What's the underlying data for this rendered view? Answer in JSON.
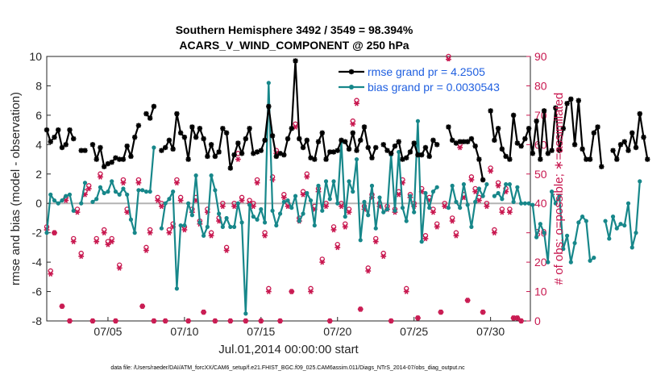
{
  "chart_data": {
    "type": "line",
    "title_line1": "Southern Hemisphere 3492 / 3549 = 98.394%",
    "title_line2": "ACARS_V_WIND_COMPONENT @ 250 hPa",
    "xlabel": "Jul.01,2014 00:00:00 start",
    "ylabel": "rmse and bias (model - observation)",
    "ylabel_right": "# of obs: o=possible; ∗=assimilated",
    "footnote": "data file: /Users/raeder/DAI/ATM_forcXX/CAM6_setup/f.e21.FHIST_BGC.f09_025.CAM6assim.011/Diags_NTrS_2014-07/obs_diag_output.nc",
    "xlim": [
      1,
      32.6
    ],
    "ylim": [
      -8,
      10
    ],
    "ylim_right": [
      0,
      90
    ],
    "yticks": [
      "10",
      "8",
      "6",
      "4",
      "2",
      "0",
      "-2",
      "-4",
      "-6",
      "-8"
    ],
    "yticks_right": [
      "90",
      "80",
      "70",
      "60",
      "50",
      "40",
      "30",
      "20",
      "10",
      "0"
    ],
    "xticks": [
      {
        "x": 5,
        "label": "07/05"
      },
      {
        "x": 10,
        "label": "07/10"
      },
      {
        "x": 15,
        "label": "07/15"
      },
      {
        "x": 20,
        "label": "07/20"
      },
      {
        "x": 25,
        "label": "07/25"
      },
      {
        "x": 30,
        "label": "07/30"
      }
    ],
    "x_step_days": 0.25,
    "x_start": 1.0,
    "series": [
      {
        "name": "rmse grand pr = 4.2505",
        "color": "#000000",
        "marker": "star",
        "values": [
          5.0,
          4.2,
          4.5,
          5.0,
          3.8,
          4.0,
          5.0,
          4.4,
          null,
          3.6,
          3.6,
          null,
          4.0,
          3.0,
          3.8,
          2.5,
          2.7,
          2.8,
          3.1,
          3.0,
          3.0,
          3.9,
          3.2,
          4.5,
          5.3,
          null,
          6.1,
          5.8,
          6.6,
          null,
          3.6,
          3.8,
          4.3,
          3.7,
          6.1,
          4.8,
          4.5,
          3.0,
          5.2,
          4.5,
          5.1,
          4.4,
          3.2,
          4.0,
          3.2,
          3.5,
          5.1,
          4.8,
          2.4,
          3.3,
          4.1,
          3.4,
          4.4,
          5.1,
          3.4,
          3.5,
          3.6,
          4.3,
          6.6,
          4.6,
          3.2,
          3.4,
          3.3,
          4.4,
          5.1,
          9.7,
          4.4,
          3.8,
          4.3,
          3.1,
          3.0,
          4.2,
          4.8,
          3.0,
          3.5,
          3.5,
          3.6,
          4.3,
          4.2,
          3.7,
          4.8,
          3.6,
          4.3,
          5.2,
          3.8,
          3.1,
          3.8,
          null,
          4.0,
          3.6,
          3.4,
          3.9,
          4.2,
          3.0,
          3.1,
          3.5,
          4.1,
          3.3,
          3.3,
          3.8,
          3.2,
          4.3,
          4.0,
          null,
          null,
          5.2,
          4.3,
          4.1,
          4.2,
          4.2,
          4.2,
          4.4,
          3.9,
          3.0,
          1.6,
          null,
          6.3,
          4.3,
          5.1,
          3.7,
          3.2,
          3.0,
          6.0,
          4.1,
          3.9,
          4.4,
          5.1,
          3.4,
          5.6,
          3.0,
          6.3,
          3.4,
          3.6,
          6.5,
          3.6,
          5.1,
          6.8,
          7.1,
          4.0,
          7.0,
          3.7,
          3.0,
          3.0,
          4.8,
          5.2,
          2.5,
          null,
          null,
          3.6,
          3.0,
          4.0,
          4.2,
          3.6,
          4.8,
          3.8,
          6.1,
          4.5,
          3.0
        ]
      },
      {
        "name": "bias grand pr = 0.0030543",
        "color": "#17878a",
        "marker": "dot",
        "values": [
          -2.0,
          0.6,
          0.2,
          0.0,
          0.2,
          0.5,
          0.6,
          -0.5,
          null,
          0.0,
          1.4,
          null,
          0.1,
          0.3,
          1.1,
          0.7,
          0.8,
          1.5,
          0.8,
          0.6,
          1.0,
          0.6,
          -1.1,
          -2.0,
          0.9,
          0.9,
          0.8,
          0.8,
          3.8,
          null,
          -1.7,
          0.0,
          0.3,
          0.8,
          -5.8,
          -1.5,
          -1.5,
          0.0,
          -0.8,
          1.9,
          -1.3,
          -2.2,
          -1.6,
          1.9,
          0.9,
          -0.7,
          -1.6,
          -1.0,
          -1.6,
          -1.6,
          0.0,
          -1.3,
          -7.5,
          -0.1,
          -0.9,
          -1.1,
          -0.4,
          -1.3,
          8.2,
          -0.5,
          -1.5,
          -0.7,
          0.1,
          0.2,
          -0.3,
          0.5,
          -1.2,
          -0.7,
          0.7,
          0.2,
          -1.5,
          1.2,
          -0.5,
          1.5,
          0.3,
          1.5,
          0.0,
          4.2,
          -0.9,
          1.5,
          0.8,
          3.0,
          -2.5,
          0.1,
          -0.8,
          1.2,
          -1.7,
          0.4,
          -0.6,
          -0.4,
          3.3,
          -0.5,
          3.5,
          -0.3,
          -1.2,
          0.5,
          -0.6,
          5.6,
          -2.6,
          0.7,
          -0.3,
          0.8,
          1.1,
          null,
          null,
          -0.3,
          1.2,
          0.1,
          -0.3,
          1.3,
          -0.1,
          -1.6,
          0.1,
          1.0,
          0.5,
          1.3,
          null,
          0.5,
          0.7,
          0.3,
          1.3,
          1.3,
          0.1,
          1.1,
          0.0,
          0.0,
          0.0,
          -0.1,
          -2.3,
          -1.4,
          -2.0,
          -4.0,
          0.8,
          0.0,
          0.5,
          -3.1,
          -2.2,
          -4.0,
          -2.7,
          -1.3,
          -0.9,
          -1.2,
          -3.9,
          -3.7,
          null,
          null,
          -1.2,
          -2.4,
          -0.9,
          -1.7,
          -1.4,
          -1.5,
          0.0,
          -3.0,
          -2.0,
          1.5
        ]
      }
    ],
    "obs_possible": {
      "name": "o=possible",
      "color": "#c8174f",
      "marker": "circle",
      "points": [
        [
          1.0,
          32
        ],
        [
          1.25,
          17
        ],
        [
          1.5,
          30
        ],
        [
          2.0,
          5
        ],
        [
          2.25,
          42
        ],
        [
          2.5,
          0
        ],
        [
          2.75,
          28
        ],
        [
          3.0,
          38
        ],
        [
          3.25,
          23
        ],
        [
          3.5,
          44
        ],
        [
          3.75,
          46
        ],
        [
          4.0,
          0
        ],
        [
          4.25,
          28
        ],
        [
          4.5,
          50
        ],
        [
          4.75,
          31
        ],
        [
          5.0,
          27
        ],
        [
          5.25,
          28
        ],
        [
          5.5,
          0
        ],
        [
          5.75,
          19
        ],
        [
          6.0,
          48
        ],
        [
          6.25,
          38
        ],
        [
          7.0,
          48
        ],
        [
          7.25,
          5
        ],
        [
          7.5,
          25
        ],
        [
          7.75,
          31
        ],
        [
          8.0,
          0
        ],
        [
          8.25,
          42
        ],
        [
          8.5,
          40
        ],
        [
          8.75,
          0
        ],
        [
          9.0,
          31
        ],
        [
          9.25,
          33
        ],
        [
          9.5,
          48
        ],
        [
          9.75,
          42
        ],
        [
          10.0,
          32
        ],
        [
          10.25,
          0
        ],
        [
          10.5,
          38
        ],
        [
          10.75,
          42
        ],
        [
          11.0,
          34
        ],
        [
          11.25,
          3
        ],
        [
          11.5,
          38
        ],
        [
          11.75,
          30
        ],
        [
          12.0,
          0
        ],
        [
          12.25,
          35
        ],
        [
          12.5,
          40
        ],
        [
          12.75,
          25
        ],
        [
          13.0,
          0
        ],
        [
          13.25,
          40
        ],
        [
          13.5,
          57
        ],
        [
          13.75,
          42
        ],
        [
          14.0,
          0
        ],
        [
          14.25,
          41
        ],
        [
          14.5,
          40
        ],
        [
          14.75,
          48
        ],
        [
          15.0,
          0
        ],
        [
          15.25,
          30
        ],
        [
          15.5,
          11
        ],
        [
          15.75,
          49
        ],
        [
          16.0,
          58
        ],
        [
          16.25,
          0
        ],
        [
          16.5,
          43
        ],
        [
          16.75,
          40
        ],
        [
          17.0,
          10
        ],
        [
          17.25,
          67
        ],
        [
          17.5,
          35
        ],
        [
          17.75,
          44
        ],
        [
          18.0,
          50
        ],
        [
          18.25,
          11
        ],
        [
          18.5,
          39
        ],
        [
          18.75,
          45
        ],
        [
          19.0,
          21
        ],
        [
          19.25,
          40
        ],
        [
          19.5,
          0
        ],
        [
          19.75,
          32
        ],
        [
          20.0,
          26
        ],
        [
          20.25,
          40
        ],
        [
          20.5,
          33
        ],
        [
          20.75,
          38
        ],
        [
          21.0,
          68
        ],
        [
          21.25,
          75
        ],
        [
          21.5,
          4
        ],
        [
          21.75,
          39
        ],
        [
          22.0,
          18
        ],
        [
          22.25,
          43
        ],
        [
          22.5,
          28
        ],
        [
          22.75,
          40
        ],
        [
          23.0,
          23
        ],
        [
          23.25,
          39
        ],
        [
          23.5,
          0
        ],
        [
          23.75,
          38
        ],
        [
          24.0,
          44
        ],
        [
          24.25,
          48
        ],
        [
          24.5,
          11
        ],
        [
          24.75,
          43
        ],
        [
          25.0,
          40
        ],
        [
          25.25,
          1
        ],
        [
          25.5,
          45
        ],
        [
          25.75,
          29
        ],
        [
          26.0,
          42
        ],
        [
          26.25,
          38
        ],
        [
          26.5,
          33
        ],
        [
          26.75,
          3
        ],
        [
          27.0,
          40
        ],
        [
          27.25,
          90
        ],
        [
          27.5,
          35
        ],
        [
          27.75,
          30
        ],
        [
          28.0,
          60
        ],
        [
          28.25,
          43
        ],
        [
          28.5,
          7
        ],
        [
          28.75,
          49
        ],
        [
          29.0,
          45
        ],
        [
          29.25,
          42
        ],
        [
          29.5,
          3
        ],
        [
          29.75,
          40
        ],
        [
          30.0,
          52
        ],
        [
          30.25,
          31
        ],
        [
          30.5,
          47
        ],
        [
          30.75,
          38
        ],
        [
          31.0,
          45
        ],
        [
          31.25,
          38
        ],
        [
          31.5,
          1
        ],
        [
          31.75,
          1
        ],
        [
          32.0,
          0
        ]
      ]
    },
    "obs_assimilated": {
      "name": "∗=assimilated",
      "color": "#c8174f",
      "marker": "asterisk",
      "points": [
        [
          1.0,
          31
        ],
        [
          1.25,
          16
        ],
        [
          1.5,
          30
        ],
        [
          2.0,
          5
        ],
        [
          2.25,
          41
        ],
        [
          2.5,
          0
        ],
        [
          2.75,
          27
        ],
        [
          3.0,
          37
        ],
        [
          3.25,
          22
        ],
        [
          3.5,
          43
        ],
        [
          3.75,
          45
        ],
        [
          4.0,
          0
        ],
        [
          4.25,
          27
        ],
        [
          4.5,
          49
        ],
        [
          4.75,
          30
        ],
        [
          5.0,
          26
        ],
        [
          5.25,
          27
        ],
        [
          5.5,
          0
        ],
        [
          5.75,
          18
        ],
        [
          6.0,
          47
        ],
        [
          6.25,
          37
        ],
        [
          7.0,
          47
        ],
        [
          7.25,
          5
        ],
        [
          7.5,
          24
        ],
        [
          7.75,
          30
        ],
        [
          8.0,
          0
        ],
        [
          8.25,
          41
        ],
        [
          8.5,
          39
        ],
        [
          8.75,
          0
        ],
        [
          9.0,
          30
        ],
        [
          9.25,
          32
        ],
        [
          9.5,
          47
        ],
        [
          9.75,
          41
        ],
        [
          10.0,
          31
        ],
        [
          10.25,
          0
        ],
        [
          10.5,
          37
        ],
        [
          10.75,
          41
        ],
        [
          11.0,
          33
        ],
        [
          11.25,
          3
        ],
        [
          11.5,
          37
        ],
        [
          11.75,
          29
        ],
        [
          12.0,
          0
        ],
        [
          12.25,
          34
        ],
        [
          12.5,
          39
        ],
        [
          12.75,
          24
        ],
        [
          13.0,
          0
        ],
        [
          13.25,
          39
        ],
        [
          13.5,
          55
        ],
        [
          13.75,
          41
        ],
        [
          14.0,
          0
        ],
        [
          14.25,
          40
        ],
        [
          14.5,
          39
        ],
        [
          14.75,
          47
        ],
        [
          15.0,
          0
        ],
        [
          15.25,
          29
        ],
        [
          15.5,
          10
        ],
        [
          15.75,
          48
        ],
        [
          16.0,
          57
        ],
        [
          16.25,
          0
        ],
        [
          16.5,
          42
        ],
        [
          16.75,
          39
        ],
        [
          17.0,
          10
        ],
        [
          17.25,
          66
        ],
        [
          17.5,
          34
        ],
        [
          17.75,
          43
        ],
        [
          18.0,
          49
        ],
        [
          18.25,
          10
        ],
        [
          18.5,
          38
        ],
        [
          18.75,
          44
        ],
        [
          19.0,
          20
        ],
        [
          19.25,
          39
        ],
        [
          19.5,
          0
        ],
        [
          19.75,
          31
        ],
        [
          20.0,
          25
        ],
        [
          20.25,
          39
        ],
        [
          20.5,
          32
        ],
        [
          20.75,
          37
        ],
        [
          21.0,
          67
        ],
        [
          21.25,
          74
        ],
        [
          21.5,
          4
        ],
        [
          21.75,
          38
        ],
        [
          22.0,
          17
        ],
        [
          22.25,
          42
        ],
        [
          22.5,
          27
        ],
        [
          22.75,
          39
        ],
        [
          23.0,
          22
        ],
        [
          23.25,
          38
        ],
        [
          23.5,
          0
        ],
        [
          23.75,
          37
        ],
        [
          24.0,
          43
        ],
        [
          24.25,
          47
        ],
        [
          24.5,
          10
        ],
        [
          24.75,
          42
        ],
        [
          25.0,
          39
        ],
        [
          25.25,
          1
        ],
        [
          25.5,
          44
        ],
        [
          25.75,
          28
        ],
        [
          26.0,
          41
        ],
        [
          26.25,
          37
        ],
        [
          26.5,
          32
        ],
        [
          26.75,
          3
        ],
        [
          27.0,
          39
        ],
        [
          27.25,
          89
        ],
        [
          27.5,
          34
        ],
        [
          27.75,
          29
        ],
        [
          28.0,
          59
        ],
        [
          28.25,
          42
        ],
        [
          28.5,
          7
        ],
        [
          28.75,
          48
        ],
        [
          29.0,
          44
        ],
        [
          29.25,
          41
        ],
        [
          29.5,
          3
        ],
        [
          29.75,
          39
        ],
        [
          30.0,
          51
        ],
        [
          30.25,
          30
        ],
        [
          30.5,
          46
        ],
        [
          30.75,
          37
        ],
        [
          31.0,
          44
        ],
        [
          31.25,
          37
        ],
        [
          31.5,
          1
        ],
        [
          31.75,
          1
        ],
        [
          32.0,
          0
        ]
      ]
    },
    "zero_line": true,
    "legend_position": "top-right"
  }
}
